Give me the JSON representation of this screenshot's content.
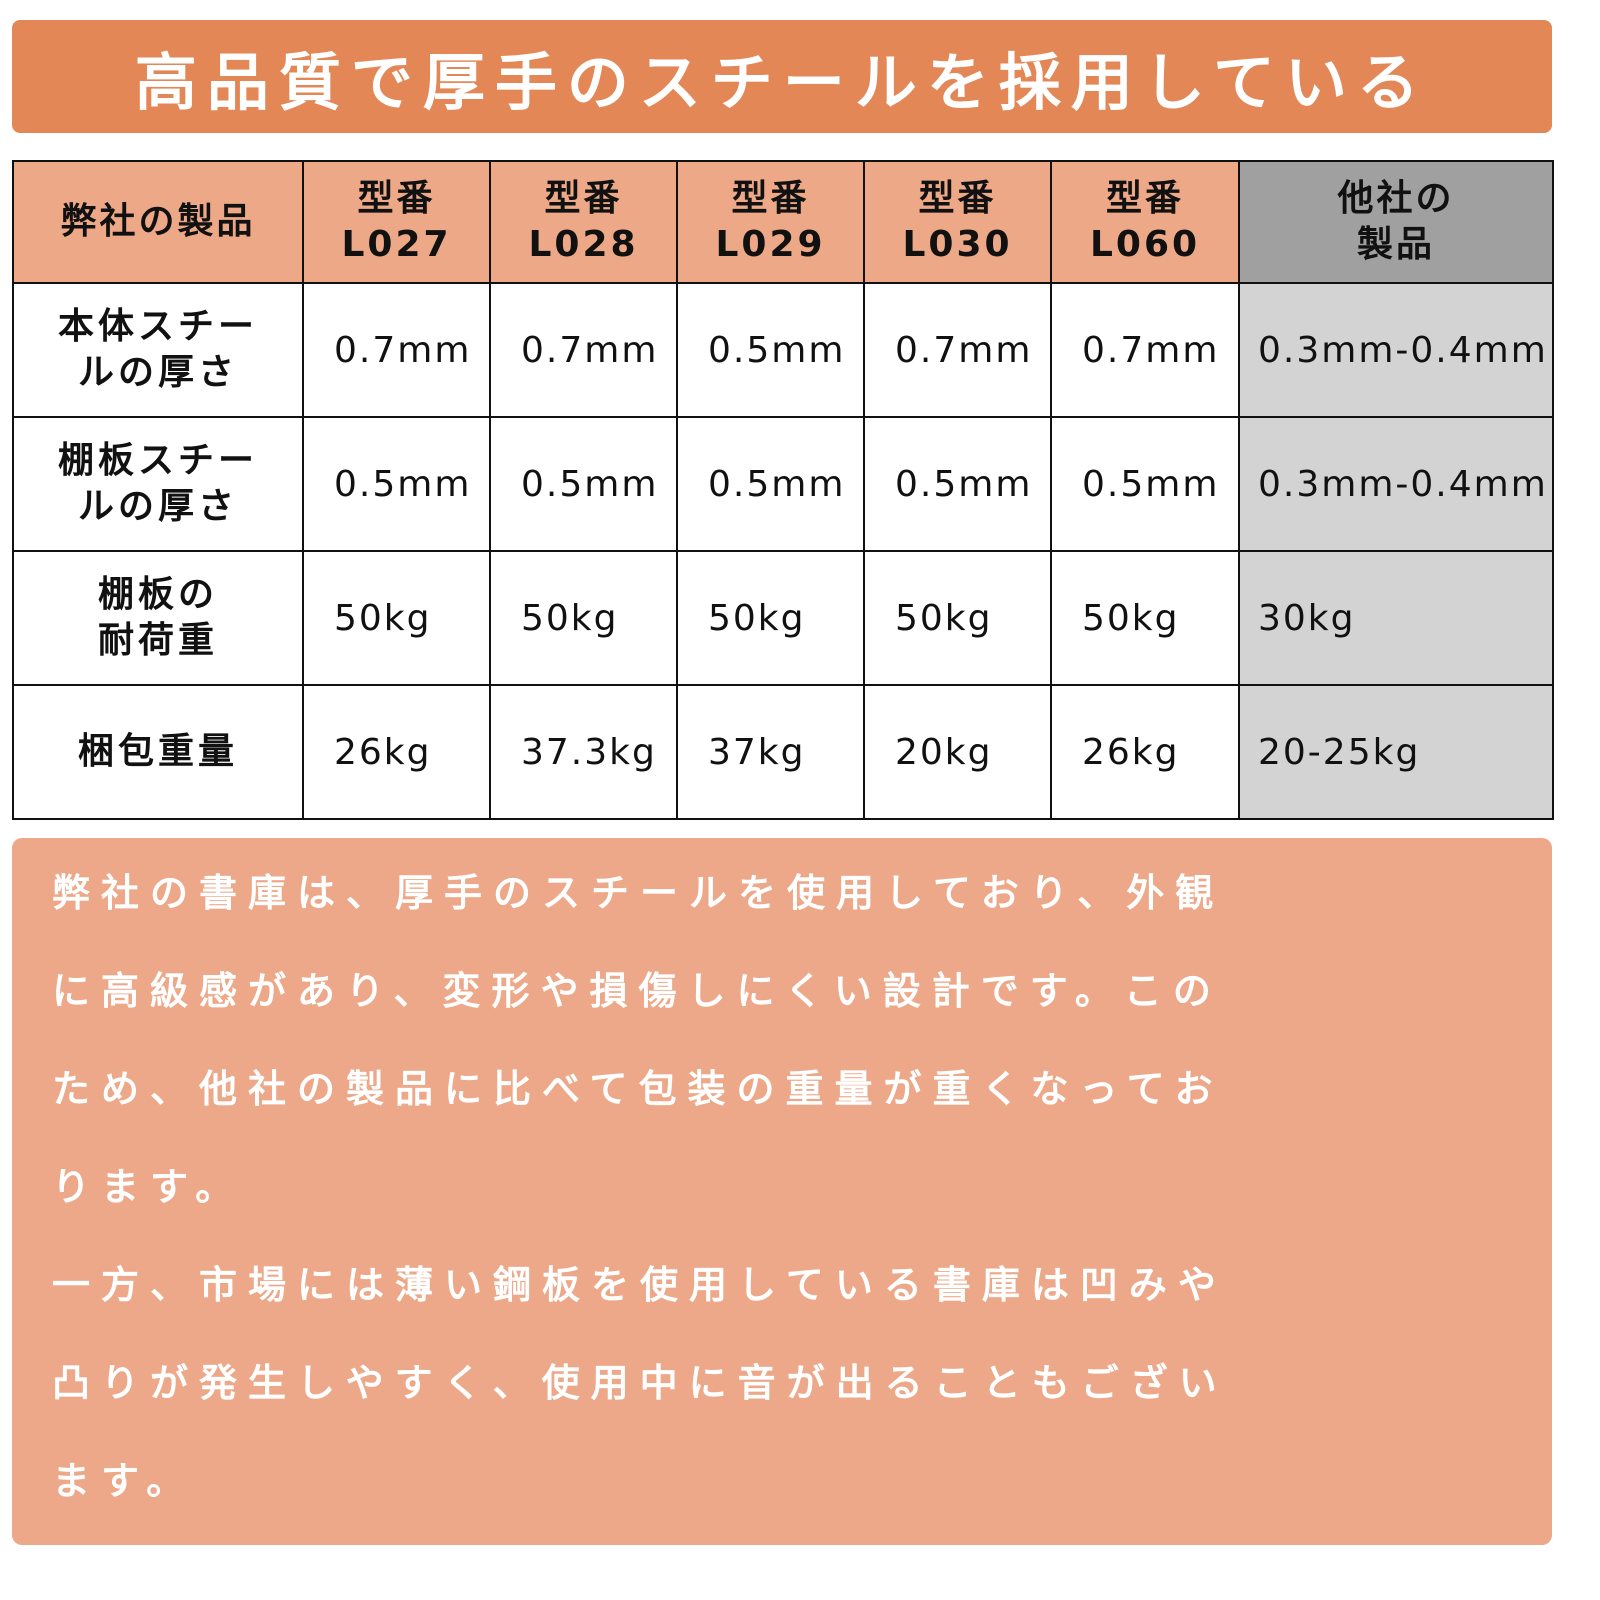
{
  "title": "高品質で厚手のスチールを採用している",
  "table": {
    "corner": "弊社の製品",
    "columns": [
      {
        "line1": "型番",
        "line2": "L027"
      },
      {
        "line1": "型番",
        "line2": "L028"
      },
      {
        "line1": "型番",
        "line2": "L029"
      },
      {
        "line1": "型番",
        "line2": "L030"
      },
      {
        "line1": "型番",
        "line2": "L060"
      },
      {
        "line1": "他社の",
        "line2": "製品"
      }
    ],
    "rows": [
      {
        "label1": "本体スチー",
        "label2": "ルの厚さ",
        "values": [
          "0.7mm",
          "0.7mm",
          "0.5mm",
          "0.7mm",
          "0.7mm",
          "0.3mm-0.4mm"
        ]
      },
      {
        "label1": "棚板スチー",
        "label2": "ルの厚さ",
        "values": [
          "0.5mm",
          "0.5mm",
          "0.5mm",
          "0.5mm",
          "0.5mm",
          "0.3mm-0.4mm"
        ]
      },
      {
        "label1": "棚板の",
        "label2": "耐荷重",
        "values": [
          "50kg",
          "50kg",
          "50kg",
          "50kg",
          "50kg",
          "30kg"
        ]
      },
      {
        "label1": "梱包重量",
        "label2": "",
        "values": [
          "26kg",
          "37.3kg",
          "37kg",
          "20kg",
          "26kg",
          "20-25kg"
        ]
      }
    ]
  },
  "note": {
    "lines": [
      "弊社の書庫は、厚手のスチールを使用しており、外観",
      "に高級感があり、変形や損傷しにくい設計です。この",
      "ため、他社の製品に比べて包装の重量が重くなってお",
      "ります。",
      "一方、市場には薄い鋼板を使用している書庫は凹みや",
      "凸りが発生しやすく、使用中に音が出ることもござい",
      "ます。"
    ]
  },
  "colors": {
    "banner": "#E38757",
    "header": "#EDA887",
    "other_header": "#A0A0A0",
    "other_cells": "#D3D3D3",
    "note_bg": "#ECA888"
  }
}
